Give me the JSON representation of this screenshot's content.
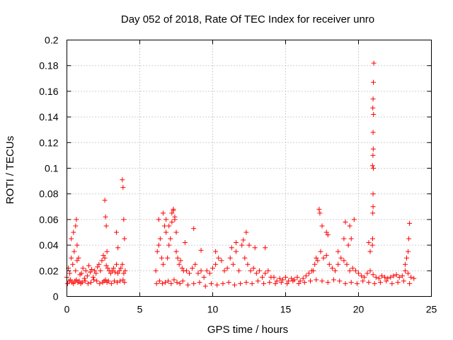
{
  "chart_data": {
    "type": "scatter",
    "title": "Day 052 of 2018, Rate Of TEC Index for receiver unro",
    "xlabel": "GPS time / hours",
    "ylabel": "ROTI / TECUs",
    "xlim": [
      0,
      25
    ],
    "ylim": [
      0,
      0.2
    ],
    "xticks": [
      0,
      5,
      10,
      15,
      20,
      25
    ],
    "xtick_labels": [
      "0",
      "5",
      "10",
      "15",
      "20",
      "25"
    ],
    "yticks": [
      0,
      0.02,
      0.04,
      0.06,
      0.08,
      0.1,
      0.12,
      0.14,
      0.16,
      0.18,
      0.2
    ],
    "ytick_labels": [
      "0",
      "0.02",
      "0.04",
      "0.06",
      "0.08",
      "0.1",
      "0.12",
      "0.14",
      "0.16",
      "0.18",
      "0.2"
    ],
    "grid": true,
    "marker": "plus",
    "color": "#ff0000",
    "series": [
      {
        "name": "ROTI",
        "x": [
          0.0,
          0.1,
          0.2,
          0.3,
          0.4,
          0.5,
          0.6,
          0.7,
          0.8,
          0.9,
          1.0,
          1.1,
          1.2,
          1.3,
          1.4,
          1.5,
          1.6,
          1.7,
          1.8,
          1.9,
          2.0,
          2.1,
          2.2,
          2.3,
          2.4,
          2.5,
          2.6,
          2.7,
          2.8,
          2.9,
          3.0,
          3.1,
          3.2,
          3.3,
          3.4,
          3.5,
          3.6,
          3.7,
          3.8,
          3.9,
          4.0,
          0.05,
          0.15,
          0.25,
          0.35,
          0.45,
          0.55,
          0.65,
          0.75,
          0.85,
          0.95,
          1.05,
          1.25,
          1.45,
          1.65,
          1.85,
          2.05,
          2.25,
          2.45,
          2.55,
          2.65,
          2.75,
          2.85,
          3.05,
          3.25,
          3.45,
          3.65,
          3.85,
          3.95,
          0.3,
          0.45,
          0.6,
          0.65,
          0.7,
          2.6,
          2.65,
          2.7,
          2.75,
          3.4,
          3.5,
          3.8,
          3.85,
          3.9,
          3.95,
          6.1,
          6.2,
          6.3,
          6.4,
          6.5,
          6.6,
          6.7,
          6.8,
          6.9,
          7.0,
          7.1,
          7.2,
          7.3,
          7.4,
          7.5,
          7.6,
          7.7,
          7.8,
          7.9,
          8.0,
          8.2,
          8.4,
          8.6,
          8.8,
          9.0,
          9.2,
          9.4,
          9.6,
          9.8,
          10.0,
          10.2,
          10.4,
          10.6,
          10.8,
          11.0,
          11.2,
          11.4,
          11.6,
          11.8,
          12.0,
          12.2,
          12.4,
          12.6,
          12.8,
          13.0,
          13.2,
          13.4,
          13.6,
          13.8,
          14.0,
          6.15,
          6.35,
          6.55,
          6.75,
          6.95,
          7.15,
          7.35,
          7.55,
          7.75,
          7.95,
          8.3,
          8.7,
          9.1,
          9.5,
          9.9,
          10.3,
          10.7,
          11.1,
          11.5,
          11.9,
          12.3,
          12.7,
          13.1,
          13.5,
          13.9,
          6.3,
          6.6,
          6.8,
          7.0,
          7.2,
          7.3,
          7.4,
          7.5,
          8.1,
          8.7,
          9.2,
          10.2,
          11.3,
          11.6,
          12.1,
          12.3,
          12.5,
          12.9,
          13.6,
          14.2,
          14.4,
          14.6,
          14.8,
          15.0,
          15.2,
          15.4,
          15.6,
          15.8,
          16.0,
          16.2,
          16.4,
          16.6,
          16.8,
          17.0,
          17.2,
          17.4,
          17.6,
          17.8,
          18.0,
          18.2,
          18.4,
          18.6,
          18.8,
          19.0,
          19.2,
          19.4,
          19.6,
          19.8,
          20.0,
          20.2,
          20.4,
          20.6,
          20.8,
          21.0,
          21.2,
          21.4,
          21.6,
          21.8,
          22.0,
          22.2,
          22.4,
          22.6,
          22.8,
          23.0,
          23.2,
          23.4,
          23.6,
          23.8,
          14.3,
          14.7,
          15.1,
          15.5,
          15.9,
          16.3,
          16.7,
          17.1,
          17.5,
          17.9,
          18.3,
          18.7,
          19.1,
          19.5,
          19.9,
          20.3,
          20.7,
          21.1,
          21.5,
          21.9,
          22.3,
          22.7,
          23.1,
          23.5,
          16.9,
          17.1,
          17.3,
          17.35,
          17.5,
          17.8,
          17.9,
          18.6,
          19.0,
          19.1,
          19.3,
          19.4,
          19.5,
          19.7,
          20.7,
          20.8,
          20.95,
          20.97,
          20.98,
          21.0,
          21.0,
          21.02,
          20.96,
          20.99,
          21.01,
          21.0,
          21.03,
          20.98,
          21.0,
          21.02,
          21.05,
          23.2,
          23.3,
          23.4,
          23.45,
          23.5
        ],
        "y": [
          0.015,
          0.022,
          0.018,
          0.03,
          0.025,
          0.035,
          0.02,
          0.028,
          0.03,
          0.017,
          0.018,
          0.022,
          0.014,
          0.02,
          0.016,
          0.024,
          0.019,
          0.021,
          0.015,
          0.02,
          0.018,
          0.023,
          0.025,
          0.02,
          0.028,
          0.032,
          0.03,
          0.024,
          0.022,
          0.02,
          0.018,
          0.02,
          0.022,
          0.019,
          0.025,
          0.018,
          0.02,
          0.022,
          0.025,
          0.018,
          0.02,
          0.01,
          0.012,
          0.013,
          0.011,
          0.01,
          0.012,
          0.013,
          0.011,
          0.012,
          0.01,
          0.011,
          0.012,
          0.01,
          0.011,
          0.013,
          0.012,
          0.01,
          0.011,
          0.012,
          0.013,
          0.011,
          0.012,
          0.01,
          0.012,
          0.011,
          0.012,
          0.013,
          0.011,
          0.045,
          0.05,
          0.055,
          0.06,
          0.04,
          0.075,
          0.062,
          0.055,
          0.035,
          0.05,
          0.038,
          0.091,
          0.085,
          0.06,
          0.045,
          0.02,
          0.035,
          0.04,
          0.045,
          0.03,
          0.025,
          0.055,
          0.06,
          0.03,
          0.04,
          0.045,
          0.065,
          0.068,
          0.06,
          0.035,
          0.03,
          0.025,
          0.028,
          0.022,
          0.02,
          0.02,
          0.018,
          0.022,
          0.025,
          0.018,
          0.02,
          0.015,
          0.02,
          0.018,
          0.022,
          0.025,
          0.03,
          0.028,
          0.02,
          0.022,
          0.03,
          0.025,
          0.035,
          0.02,
          0.04,
          0.03,
          0.025,
          0.02,
          0.022,
          0.018,
          0.02,
          0.015,
          0.018,
          0.02,
          0.015,
          0.01,
          0.012,
          0.01,
          0.011,
          0.012,
          0.01,
          0.013,
          0.011,
          0.01,
          0.012,
          0.009,
          0.01,
          0.011,
          0.008,
          0.01,
          0.009,
          0.01,
          0.011,
          0.009,
          0.01,
          0.011,
          0.01,
          0.012,
          0.01,
          0.011,
          0.06,
          0.065,
          0.05,
          0.055,
          0.058,
          0.067,
          0.062,
          0.05,
          0.042,
          0.053,
          0.036,
          0.035,
          0.038,
          0.042,
          0.044,
          0.05,
          0.04,
          0.038,
          0.038,
          0.015,
          0.012,
          0.014,
          0.013,
          0.015,
          0.012,
          0.014,
          0.013,
          0.015,
          0.012,
          0.014,
          0.016,
          0.018,
          0.02,
          0.025,
          0.028,
          0.035,
          0.03,
          0.032,
          0.025,
          0.022,
          0.02,
          0.025,
          0.03,
          0.028,
          0.025,
          0.02,
          0.022,
          0.02,
          0.018,
          0.016,
          0.015,
          0.018,
          0.02,
          0.017,
          0.015,
          0.014,
          0.016,
          0.015,
          0.014,
          0.015,
          0.016,
          0.017,
          0.015,
          0.016,
          0.02,
          0.018,
          0.015,
          0.014,
          0.01,
          0.011,
          0.01,
          0.012,
          0.01,
          0.011,
          0.012,
          0.013,
          0.012,
          0.011,
          0.013,
          0.012,
          0.01,
          0.011,
          0.01,
          0.012,
          0.011,
          0.01,
          0.011,
          0.012,
          0.01,
          0.011,
          0.012,
          0.01,
          0.02,
          0.03,
          0.068,
          0.065,
          0.055,
          0.05,
          0.048,
          0.035,
          0.045,
          0.058,
          0.04,
          0.055,
          0.045,
          0.06,
          0.042,
          0.035,
          0.04,
          0.045,
          0.065,
          0.07,
          0.08,
          0.1,
          0.102,
          0.11,
          0.115,
          0.128,
          0.142,
          0.147,
          0.154,
          0.167,
          0.182,
          0.025,
          0.03,
          0.035,
          0.045,
          0.057
        ]
      }
    ]
  }
}
